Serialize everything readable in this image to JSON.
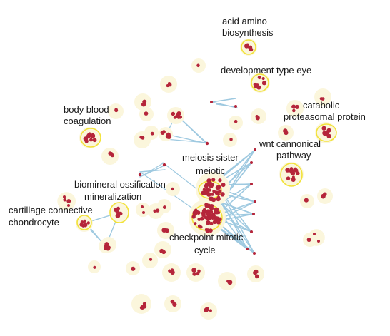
{
  "clusters": [
    {
      "label_lines": [
        "acid amino",
        "biosynthesis"
      ]
    },
    {
      "label_lines": [
        "development type eye"
      ]
    },
    {
      "label_lines": [
        "catabolic",
        "proteasomal protein"
      ]
    },
    {
      "label_lines": [
        "body blood",
        "coagulation"
      ]
    },
    {
      "label_lines": [
        "wnt cannonical",
        "pathway"
      ]
    },
    {
      "label_lines": [
        "meiosis sister",
        "meiotic"
      ]
    },
    {
      "label_lines": [
        "biomineral ossification",
        "mineralization"
      ]
    },
    {
      "label_lines": [
        "cartillage connective",
        "chondrocyte"
      ]
    },
    {
      "label_lines": [
        "checkpoint mitotic",
        "cycle"
      ]
    }
  ],
  "colors": {
    "node": "#b5253a",
    "edge": "#9ec9e0",
    "halo": "#fbf6dc",
    "ring": "#f2e23a"
  }
}
